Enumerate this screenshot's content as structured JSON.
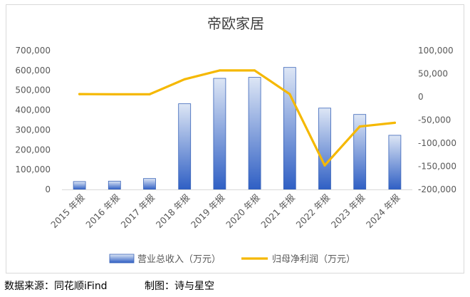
{
  "chart_data": {
    "type": "bar",
    "title": "帝欧家居",
    "categories": [
      "2015 年报",
      "2016 年报",
      "2017 年报",
      "2018 年报",
      "2019 年报",
      "2020 年报",
      "2021 年报",
      "2022 年报",
      "2023 年报",
      "2024 年报"
    ],
    "series": [
      {
        "name": "营业总收入（万元）",
        "type": "bar",
        "axis": "left",
        "color": "#4472c4",
        "values": [
          40000,
          42000,
          55000,
          432000,
          560000,
          565000,
          615000,
          410000,
          378000,
          273000
        ]
      },
      {
        "name": "归母净利润（万元）",
        "type": "line",
        "axis": "right",
        "color": "#f5b800",
        "values": [
          6000,
          5500,
          5500,
          38000,
          57000,
          57000,
          6000,
          -148000,
          -64000,
          -56000
        ]
      }
    ],
    "y_left": {
      "min": 0,
      "max": 700000,
      "ticks": [
        0,
        100000,
        200000,
        300000,
        400000,
        500000,
        600000,
        700000
      ],
      "tick_labels": [
        "0",
        "100,000",
        "200,000",
        "300,000",
        "400,000",
        "500,000",
        "600,000",
        "700,000"
      ]
    },
    "y_right": {
      "min": -200000,
      "max": 100000,
      "ticks": [
        -200000,
        -150000,
        -100000,
        -50000,
        0,
        50000,
        100000
      ],
      "tick_labels": [
        "-200,000",
        "-150,000",
        "-100,000",
        "-50,000",
        "0",
        "50,000",
        "100,000"
      ]
    },
    "grid": false,
    "legend_position": "bottom"
  },
  "footer": {
    "source": "数据来源：同花顺iFind",
    "credit": "制图：诗与星空"
  }
}
